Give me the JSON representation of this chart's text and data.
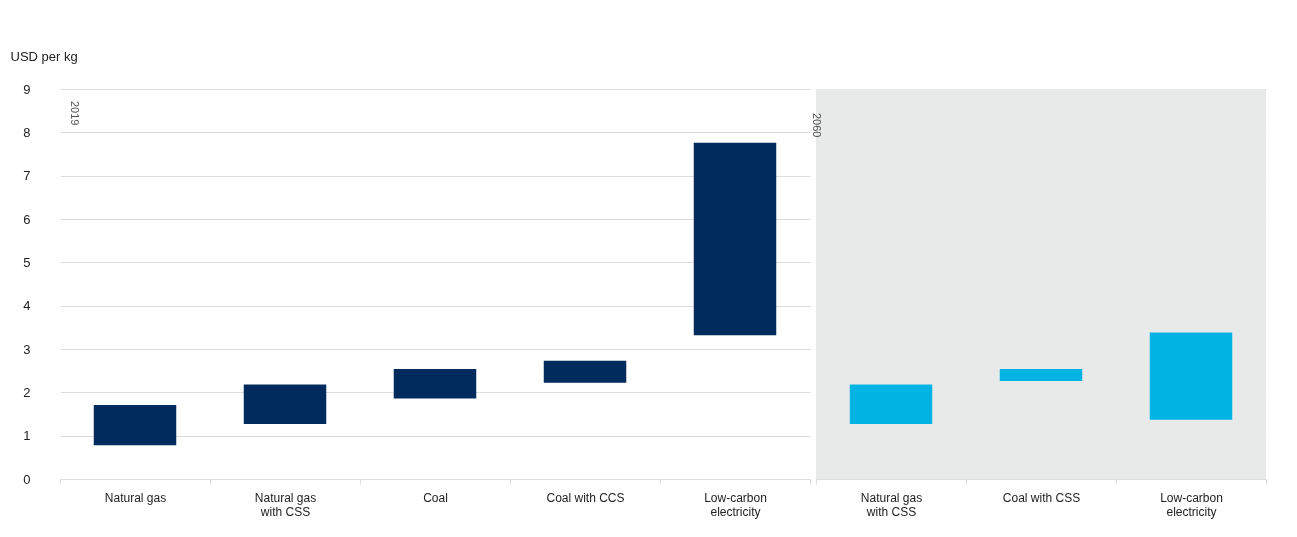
{
  "chart_data": [
    {
      "type": "bar",
      "ylabel": "USD per kg",
      "categories": [
        "Natural gas",
        "Natural gas with CSS",
        "Coal",
        "Coal with CCS",
        "Low-carbon electricity"
      ],
      "base": [
        0.78,
        1.27,
        1.86,
        2.22,
        3.32
      ],
      "values": [
        0.93,
        0.91,
        0.68,
        0.51,
        4.44
      ],
      "colors": [
        "#002b5c",
        "#002b5c",
        "#002b5c",
        "#002b5c",
        "#002b5c"
      ],
      "ylim": [
        0,
        9
      ],
      "yticks": [
        0,
        1,
        2,
        3,
        4,
        5,
        6,
        7,
        8,
        9
      ],
      "grid": "y",
      "annotations": [
        "2019"
      ]
    },
    {
      "type": "bar",
      "categories": [
        "Natural gas with CSS",
        "Coal with CSS",
        "Low-carbon electricity"
      ],
      "base": [
        1.27,
        2.26,
        1.37
      ],
      "values": [
        0.91,
        0.28,
        2.01
      ],
      "colors": [
        "#00b3e3",
        "#00b3e3",
        "#00b3e3"
      ],
      "ylim": [
        0,
        9
      ],
      "yticks": [
        0,
        1,
        2,
        3,
        4,
        5,
        6,
        7,
        8,
        9
      ],
      "grid": "y",
      "tick_labels": "x",
      "bands": [
        {
          "axis": "x",
          "from": "Natural gas with CSS",
          "to": "Low-carbon electricity",
          "label": "2060",
          "color": "#e8eaea"
        }
      ]
    }
  ]
}
